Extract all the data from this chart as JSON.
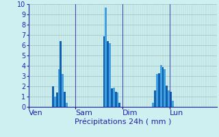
{
  "title": "",
  "xlabel": "Précipitations 24h ( mm )",
  "background_color": "#cef0f0",
  "plot_bg_color": "#cef0f0",
  "bar_color_dark": "#1060b0",
  "bar_color_light": "#40a0e0",
  "ylim": [
    0,
    10
  ],
  "yticks": [
    0,
    1,
    2,
    3,
    4,
    5,
    6,
    7,
    8,
    9,
    10
  ],
  "day_labels": [
    "Ven",
    "Sam",
    "Dim",
    "Lun"
  ],
  "day_positions": [
    0,
    24,
    48,
    72
  ],
  "total_bars": 96,
  "values": [
    0,
    0,
    0,
    0,
    0,
    0,
    0,
    0,
    0,
    0,
    0,
    0,
    2.0,
    1.0,
    1.4,
    3.7,
    6.4,
    3.2,
    1.5,
    0.4,
    0.0,
    0.0,
    0.0,
    0.0,
    0,
    0,
    0,
    0,
    0,
    0,
    0,
    0,
    0,
    0,
    0,
    0,
    0,
    0,
    6.9,
    9.7,
    6.4,
    6.2,
    1.8,
    1.9,
    1.5,
    1.4,
    0.4,
    0.0,
    0,
    0,
    0,
    0,
    0,
    0,
    0,
    0,
    0,
    0,
    0,
    0,
    0.0,
    0.0,
    0.0,
    0.4,
    1.6,
    3.2,
    3.3,
    4.1,
    3.9,
    3.7,
    2.1,
    1.6,
    1.5,
    0.6,
    0.0,
    0.0,
    0.0,
    0.0,
    0.0,
    0.0,
    0.0,
    0.0,
    0.0,
    0.0,
    0,
    0,
    0,
    0,
    0,
    0,
    0,
    0,
    0,
    0,
    0,
    0
  ],
  "grid_color": "#a0c0c0",
  "tick_color": "#2020aa",
  "label_color": "#2020aa",
  "line_color": "#2020aa",
  "xlabel_fontsize": 8,
  "ytick_fontsize": 7,
  "xtick_fontsize": 8
}
